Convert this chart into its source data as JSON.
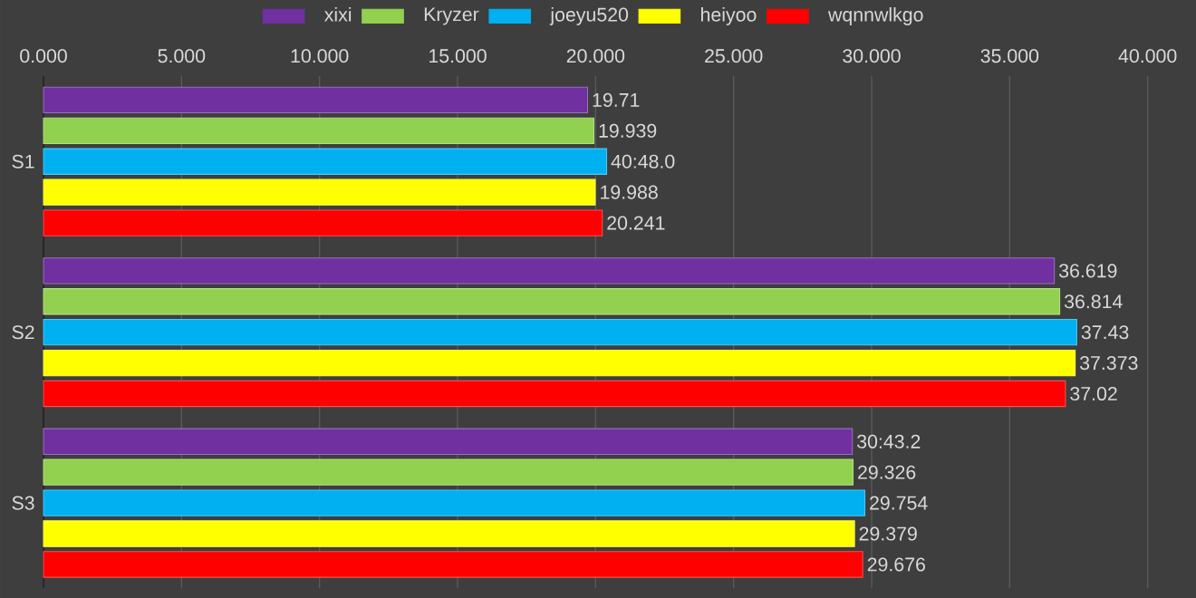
{
  "chart_data": {
    "type": "bar",
    "orientation": "horizontal",
    "categories": [
      "S1",
      "S2",
      "S3"
    ],
    "series": [
      {
        "name": "xixi",
        "color": "#7030a0",
        "values": [
          19.71,
          36.619,
          29.3
        ],
        "value_labels": [
          "19.71",
          "36.619",
          "30:43.2"
        ]
      },
      {
        "name": "Kryzer",
        "color": "#92d050",
        "values": [
          19.939,
          36.814,
          29.326
        ],
        "value_labels": [
          "19.939",
          "36.814",
          "29.326"
        ]
      },
      {
        "name": "joeyu520",
        "color": "#00b0f0",
        "values": [
          20.4,
          37.43,
          29.754
        ],
        "value_labels": [
          "40:48.0",
          "37.43",
          "29.754"
        ]
      },
      {
        "name": "heiyoo",
        "color": "#ffff00",
        "values": [
          19.988,
          37.373,
          29.379
        ],
        "value_labels": [
          "19.988",
          "37.373",
          "29.379"
        ]
      },
      {
        "name": "wqnnwlkgo",
        "color": "#ff0000",
        "values": [
          20.241,
          37.02,
          29.676
        ],
        "value_labels": [
          "20.241",
          "37.02",
          "29.676"
        ]
      }
    ],
    "xlim": [
      0,
      40
    ],
    "xticks": [
      {
        "value": 0,
        "label": "0.000"
      },
      {
        "value": 5,
        "label": "5.000"
      },
      {
        "value": 10,
        "label": "10.000"
      },
      {
        "value": 15,
        "label": "15.000"
      },
      {
        "value": 20,
        "label": "20.000"
      },
      {
        "value": 25,
        "label": "25.000"
      },
      {
        "value": 30,
        "label": "30.000"
      },
      {
        "value": 35,
        "label": "35.000"
      },
      {
        "value": 40,
        "label": "40.000"
      }
    ],
    "grid": "x",
    "legend": "top"
  }
}
